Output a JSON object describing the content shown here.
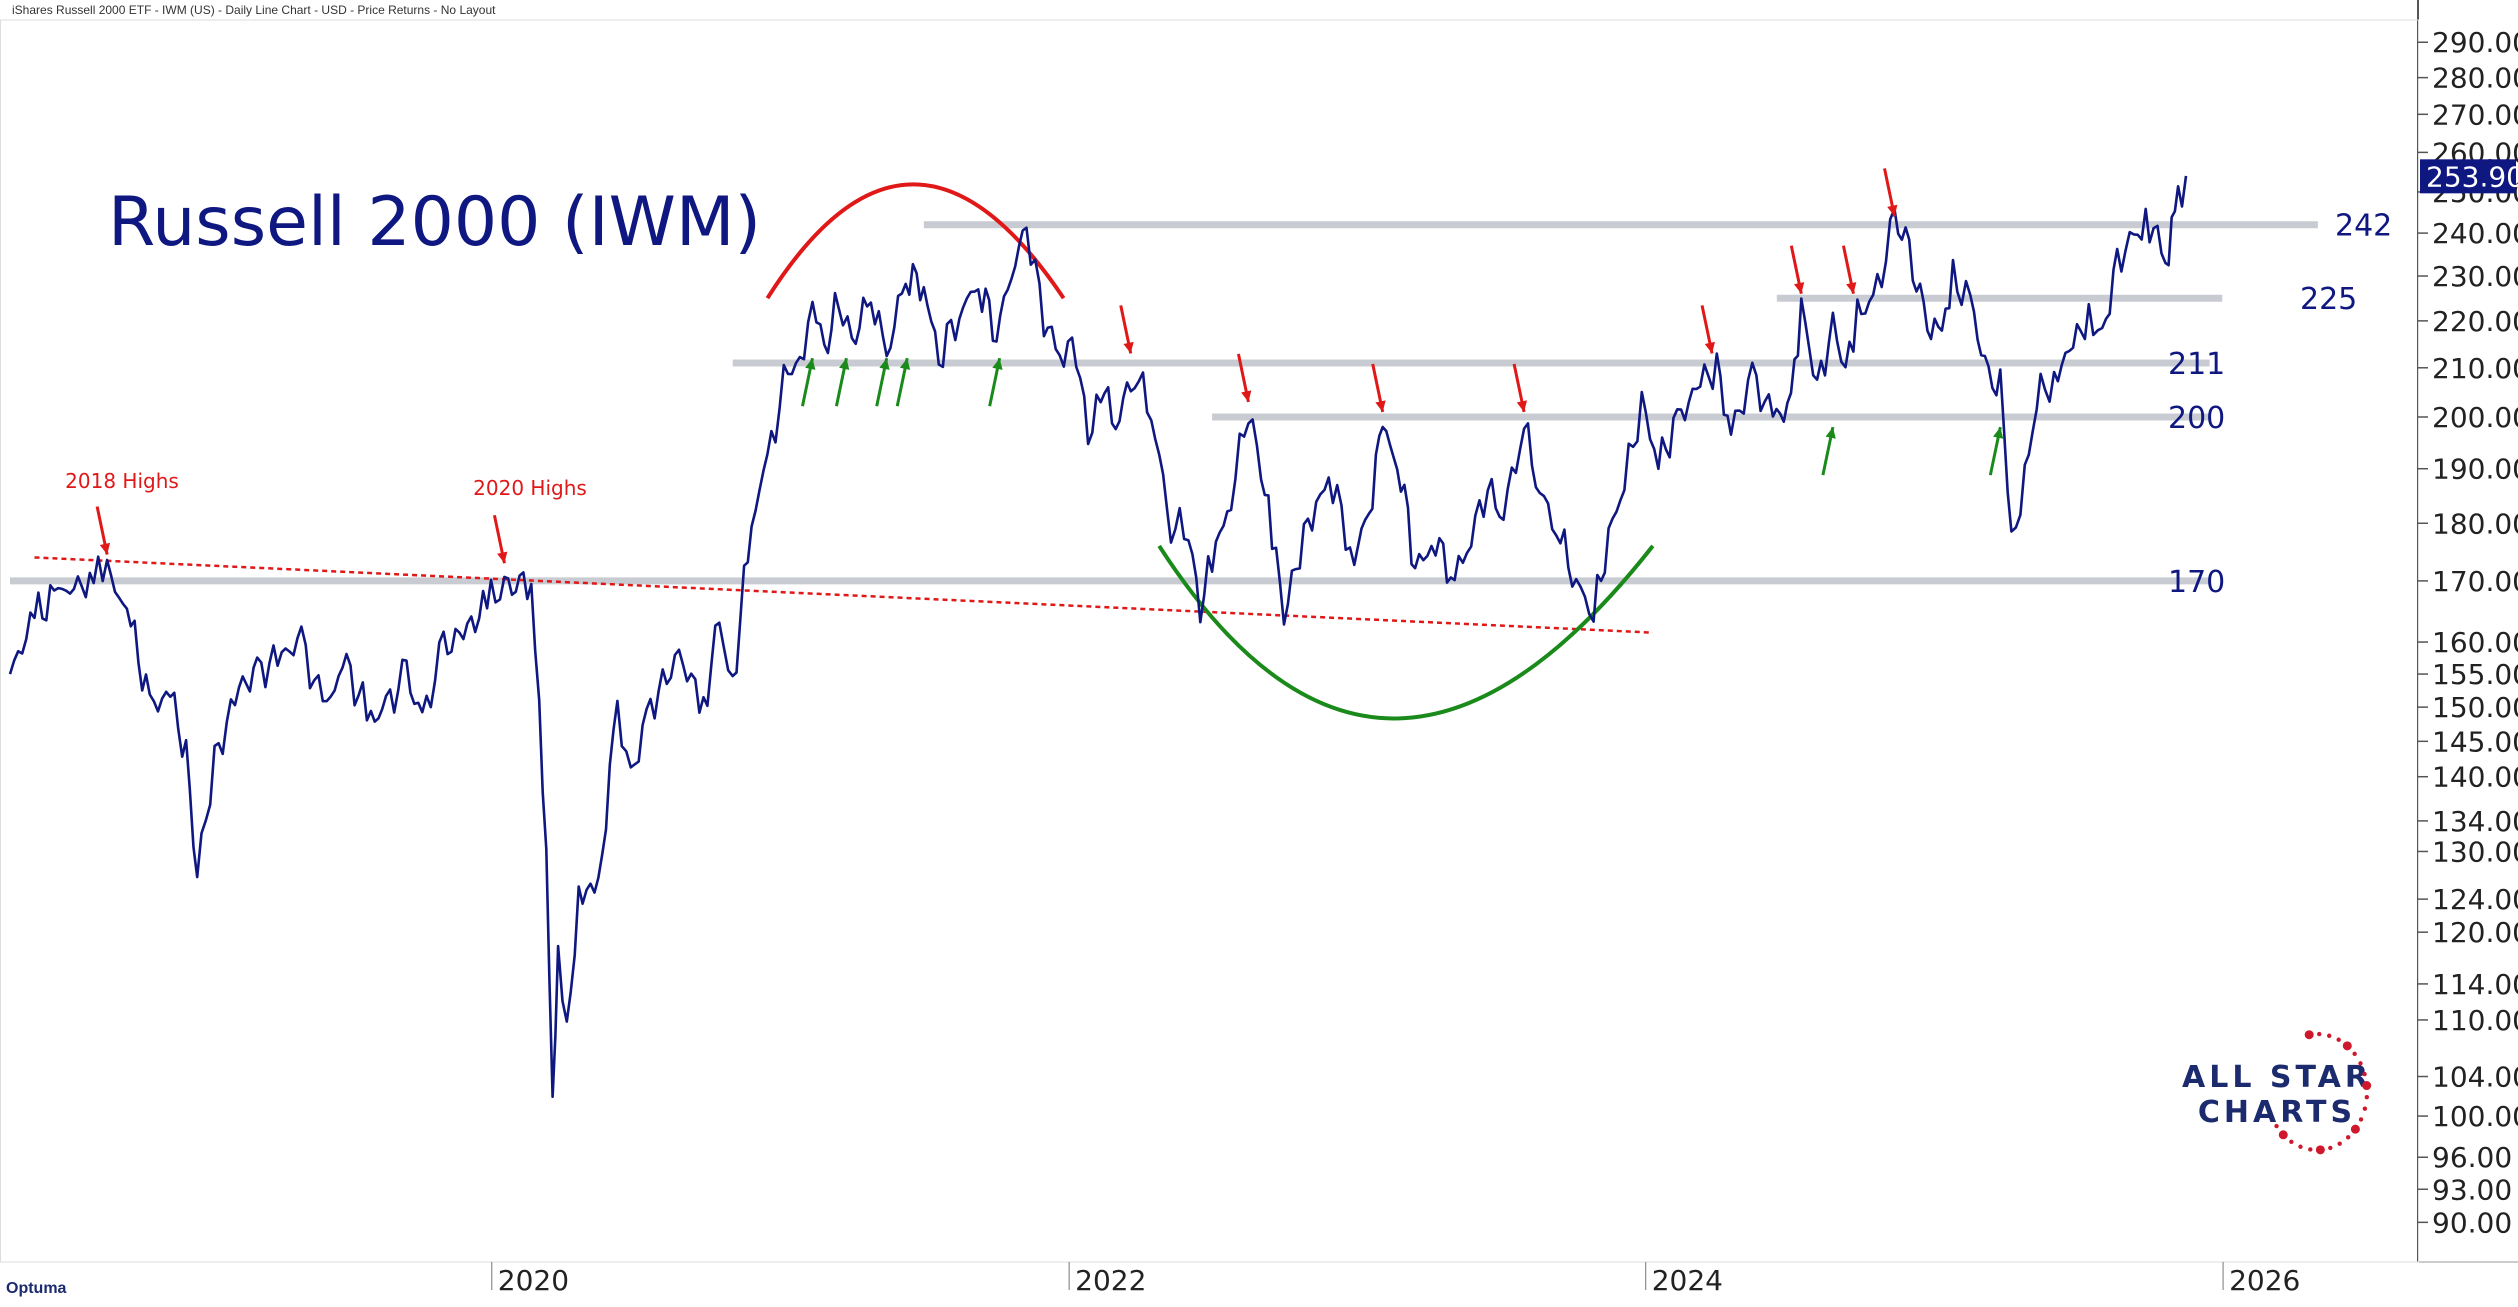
{
  "header": "iShares Russell 2000 ETF - IWM (US) - Daily Line Chart - USD - Price Returns - No Layout",
  "brand": "Optuma",
  "logo": {
    "line1": "ALL STAR",
    "line2": "CHARTS"
  },
  "colors": {
    "line": "#0f1780",
    "resistance": "#e01818",
    "support": "#1a8a1a",
    "level": "#c8ccd2",
    "price_box": "#0f1780"
  },
  "chart_data": {
    "type": "line",
    "title": "Russell 2000 (IWM)",
    "scale": "log",
    "ylim": [
      88,
      295
    ],
    "xlim": [
      "2018-05-01",
      "2026-09-01"
    ],
    "x_ticks": [
      "2020",
      "2022",
      "2024",
      "2026"
    ],
    "y_ticks": [
      "90.00",
      "93.00",
      "96.00",
      "100.00",
      "104.00",
      "110.00",
      "114.00",
      "120.00",
      "124.00",
      "130.00",
      "134.00",
      "140.00",
      "145.00",
      "150.00",
      "155.00",
      "160.00",
      "170.00",
      "180.00",
      "190.00",
      "200.00",
      "210.00",
      "220.00",
      "230.00",
      "240.00",
      "250.00",
      "260.00",
      "270.00",
      "280.00",
      "290.00"
    ],
    "last_price": "253.90",
    "series": [
      {
        "points": [
          [
            "2018-05-01",
            155
          ],
          [
            "2018-06-01",
            164
          ],
          [
            "2018-07-01",
            168
          ],
          [
            "2018-08-15",
            170
          ],
          [
            "2018-09-01",
            172
          ],
          [
            "2018-10-01",
            163
          ],
          [
            "2018-10-25",
            150
          ],
          [
            "2018-11-20",
            152
          ],
          [
            "2018-12-10",
            143
          ],
          [
            "2018-12-24",
            127
          ],
          [
            "2019-01-15",
            142
          ],
          [
            "2019-02-15",
            153
          ],
          [
            "2019-03-10",
            155
          ],
          [
            "2019-04-10",
            158
          ],
          [
            "2019-05-05",
            160
          ],
          [
            "2019-06-01",
            150
          ],
          [
            "2019-07-01",
            156
          ],
          [
            "2019-08-01",
            148
          ],
          [
            "2019-08-20",
            150
          ],
          [
            "2019-09-15",
            155
          ],
          [
            "2019-10-05",
            148
          ],
          [
            "2019-11-01",
            159
          ],
          [
            "2019-12-01",
            162
          ],
          [
            "2019-12-31",
            167
          ],
          [
            "2020-01-17",
            170
          ],
          [
            "2020-02-10",
            168
          ],
          [
            "2020-02-20",
            169
          ],
          [
            "2020-03-01",
            148
          ],
          [
            "2020-03-10",
            130
          ],
          [
            "2020-03-18",
            100
          ],
          [
            "2020-03-25",
            118
          ],
          [
            "2020-04-05",
            108
          ],
          [
            "2020-04-20",
            125
          ],
          [
            "2020-05-15",
            125
          ],
          [
            "2020-06-08",
            150
          ],
          [
            "2020-06-25",
            140
          ],
          [
            "2020-07-20",
            150
          ],
          [
            "2020-08-25",
            158
          ],
          [
            "2020-09-25",
            150
          ],
          [
            "2020-10-15",
            163
          ],
          [
            "2020-11-01",
            153
          ],
          [
            "2020-11-25",
            180
          ],
          [
            "2020-12-20",
            195
          ],
          [
            "2021-01-10",
            210
          ],
          [
            "2021-01-25",
            210
          ],
          [
            "2021-02-10",
            226
          ],
          [
            "2021-02-25",
            213
          ],
          [
            "2021-03-15",
            225
          ],
          [
            "2021-04-01",
            215
          ],
          [
            "2021-04-25",
            226
          ],
          [
            "2021-05-15",
            212
          ],
          [
            "2021-06-08",
            230
          ],
          [
            "2021-07-01",
            228
          ],
          [
            "2021-07-20",
            212
          ],
          [
            "2021-08-15",
            222
          ],
          [
            "2021-09-08",
            228
          ],
          [
            "2021-10-01",
            218
          ],
          [
            "2021-11-08",
            242
          ],
          [
            "2021-11-30",
            220
          ],
          [
            "2021-12-20",
            213
          ],
          [
            "2022-01-10",
            214
          ],
          [
            "2022-01-25",
            195
          ],
          [
            "2022-02-10",
            207
          ],
          [
            "2022-03-01",
            198
          ],
          [
            "2022-03-25",
            210
          ],
          [
            "2022-04-15",
            200
          ],
          [
            "2022-05-10",
            180
          ],
          [
            "2022-06-01",
            178
          ],
          [
            "2022-06-16",
            166
          ],
          [
            "2022-07-01",
            173
          ],
          [
            "2022-07-25",
            185
          ],
          [
            "2022-08-16",
            201
          ],
          [
            "2022-09-01",
            190
          ],
          [
            "2022-09-15",
            178
          ],
          [
            "2022-09-30",
            164
          ],
          [
            "2022-10-20",
            175
          ],
          [
            "2022-11-15",
            186
          ],
          [
            "2022-12-01",
            187
          ],
          [
            "2022-12-28",
            173
          ],
          [
            "2023-01-20",
            186
          ],
          [
            "2023-02-02",
            198
          ],
          [
            "2023-02-25",
            189
          ],
          [
            "2023-03-15",
            172
          ],
          [
            "2023-04-10",
            177
          ],
          [
            "2023-05-04",
            170
          ],
          [
            "2023-05-25",
            178
          ],
          [
            "2023-06-15",
            186
          ],
          [
            "2023-07-05",
            182
          ],
          [
            "2023-07-31",
            198
          ],
          [
            "2023-08-20",
            186
          ],
          [
            "2023-09-15",
            177
          ],
          [
            "2023-10-05",
            170
          ],
          [
            "2023-10-27",
            164
          ],
          [
            "2023-11-15",
            178
          ],
          [
            "2023-12-05",
            187
          ],
          [
            "2023-12-27",
            203
          ],
          [
            "2024-01-17",
            191
          ],
          [
            "2024-02-10",
            199
          ],
          [
            "2024-03-10",
            207
          ],
          [
            "2024-03-31",
            210
          ],
          [
            "2024-04-18",
            197
          ],
          [
            "2024-05-15",
            208
          ],
          [
            "2024-06-10",
            200
          ],
          [
            "2024-07-03",
            202
          ],
          [
            "2024-07-16",
            224
          ],
          [
            "2024-08-05",
            205
          ],
          [
            "2024-08-25",
            220
          ],
          [
            "2024-09-10",
            208
          ],
          [
            "2024-09-25",
            222
          ],
          [
            "2024-10-15",
            224
          ],
          [
            "2024-11-11",
            242
          ],
          [
            "2024-11-25",
            240
          ],
          [
            "2024-12-18",
            220
          ],
          [
            "2025-01-10",
            217
          ],
          [
            "2025-01-24",
            229
          ],
          [
            "2025-02-15",
            225
          ],
          [
            "2025-03-10",
            206
          ],
          [
            "2025-03-25",
            209
          ],
          [
            "2025-04-08",
            175
          ],
          [
            "2025-04-25",
            190
          ],
          [
            "2025-05-15",
            205
          ],
          [
            "2025-06-01",
            208
          ],
          [
            "2025-06-30",
            216
          ],
          [
            "2025-07-15",
            222
          ],
          [
            "2025-08-01",
            216
          ],
          [
            "2025-08-20",
            234
          ],
          [
            "2025-09-10",
            238
          ],
          [
            "2025-09-25",
            243
          ],
          [
            "2025-10-10",
            241
          ],
          [
            "2025-10-20",
            230
          ],
          [
            "2025-10-28",
            244
          ],
          [
            "2025-11-05",
            248
          ],
          [
            "2025-11-15",
            254
          ]
        ]
      }
    ],
    "levels": [
      {
        "value": 242,
        "label": "242"
      },
      {
        "value": 225,
        "label": "225"
      },
      {
        "value": 211,
        "label": "211"
      },
      {
        "value": 200,
        "label": "200"
      },
      {
        "value": 170,
        "label": "170"
      }
    ],
    "annotations": [
      "2018 Highs",
      "2020 Highs"
    ]
  }
}
